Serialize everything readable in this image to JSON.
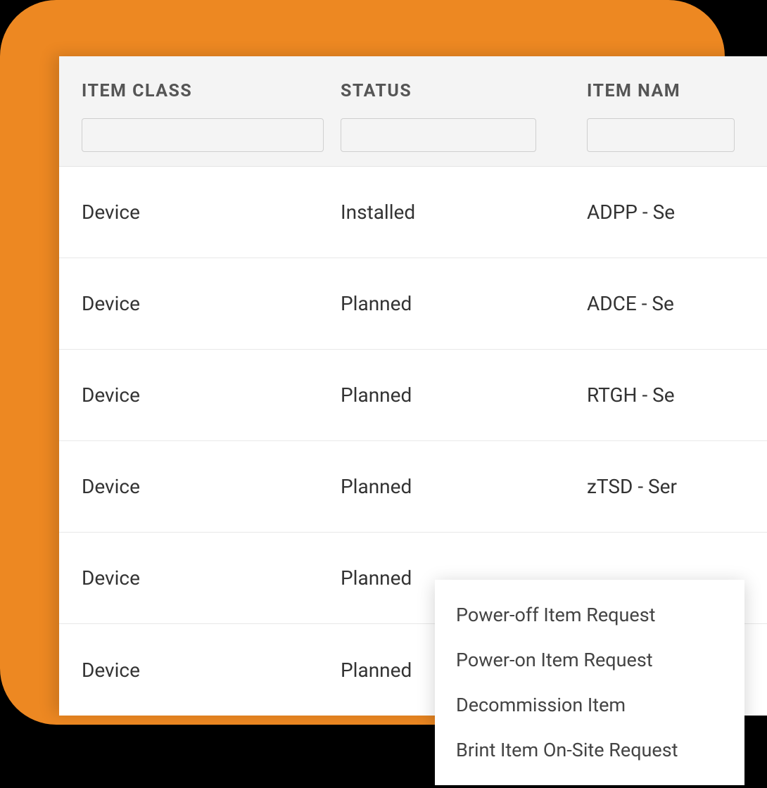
{
  "colors": {
    "orange_bg": "#ed8822",
    "page_bg": "#000000",
    "table_bg": "#ffffff",
    "header_bg": "#f4f4f4",
    "border": "#e5e5e5",
    "input_border": "#cfcfcf",
    "header_text": "#555555",
    "cell_text": "#333333",
    "menu_text": "#444444"
  },
  "table": {
    "columns": [
      {
        "label": "ITEM CLASS"
      },
      {
        "label": "STATUS"
      },
      {
        "label": "ITEM NAM"
      }
    ],
    "rows": [
      {
        "item_class": "Device",
        "status": "Installed",
        "item_name": "ADPP - Se"
      },
      {
        "item_class": "Device",
        "status": "Planned",
        "item_name": "ADCE - Se"
      },
      {
        "item_class": "Device",
        "status": "Planned",
        "item_name": "RTGH - Se"
      },
      {
        "item_class": "Device",
        "status": "Planned",
        "item_name": "zTSD - Ser"
      },
      {
        "item_class": "Device",
        "status": "Planned",
        "item_name": ""
      },
      {
        "item_class": "Device",
        "status": "Planned",
        "item_name": ""
      }
    ]
  },
  "context_menu": {
    "items": [
      "Power-off Item Request",
      "Power-on Item Request",
      "Decommission Item",
      "Brint Item On-Site Request"
    ]
  }
}
